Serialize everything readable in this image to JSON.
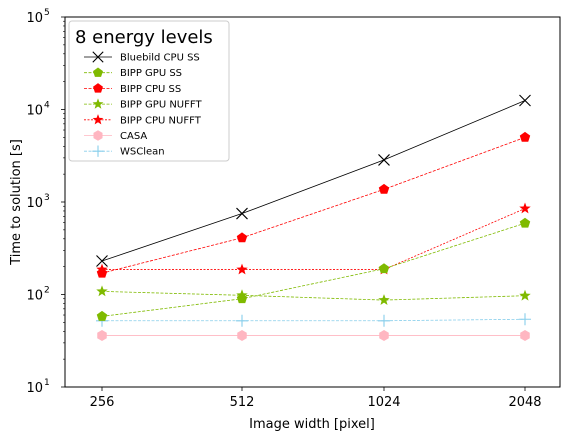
{
  "chart_data": {
    "type": "line",
    "xlabel": "Image width [pixel]",
    "ylabel": "Time to solution [s]",
    "x": [
      256,
      512,
      1024,
      2048
    ],
    "x_tick_labels": [
      "256",
      "512",
      "1024",
      "2048"
    ],
    "yscale": "log",
    "ylim": [
      10,
      100000
    ],
    "y_tick_labels": [
      {
        "base": "10",
        "exp": "1",
        "value": 10
      },
      {
        "base": "10",
        "exp": "2",
        "value": 100
      },
      {
        "base": "10",
        "exp": "3",
        "value": 1000
      },
      {
        "base": "10",
        "exp": "4",
        "value": 10000
      },
      {
        "base": "10",
        "exp": "5",
        "value": 100000
      }
    ],
    "grid": false,
    "legend": {
      "title": "8 energy levels",
      "placement": "upper-left"
    },
    "series": [
      {
        "name": "Bluebild CPU SS",
        "color": "#000000",
        "marker": "x",
        "dash": "solid",
        "values": [
          230,
          750,
          2850,
          12500
        ]
      },
      {
        "name": "BIPP GPU SS",
        "color": "#7fba00",
        "marker": "pentagon",
        "dash": "dashed",
        "values": [
          58,
          90,
          190,
          590
        ]
      },
      {
        "name": "BIPP CPU SS",
        "color": "#ff0000",
        "marker": "pentagon",
        "dash": "dashed",
        "values": [
          170,
          410,
          1370,
          5000
        ]
      },
      {
        "name": "BIPP GPU NUFFT",
        "color": "#7fba00",
        "marker": "star",
        "dash": "dashed",
        "values": [
          108,
          98,
          87,
          97
        ]
      },
      {
        "name": "BIPP CPU NUFFT",
        "color": "#ff0000",
        "marker": "star",
        "dash": "dotted",
        "values": [
          186,
          186,
          186,
          850
        ]
      },
      {
        "name": "CASA",
        "color": "#ffb6c1",
        "marker": "hexagon",
        "dash": "solid",
        "values": [
          36,
          36,
          36,
          36
        ]
      },
      {
        "name": "WSClean",
        "color": "#87ceeb",
        "marker": "plus",
        "dash": "dashed",
        "values": [
          52,
          52,
          52,
          54
        ]
      }
    ]
  }
}
